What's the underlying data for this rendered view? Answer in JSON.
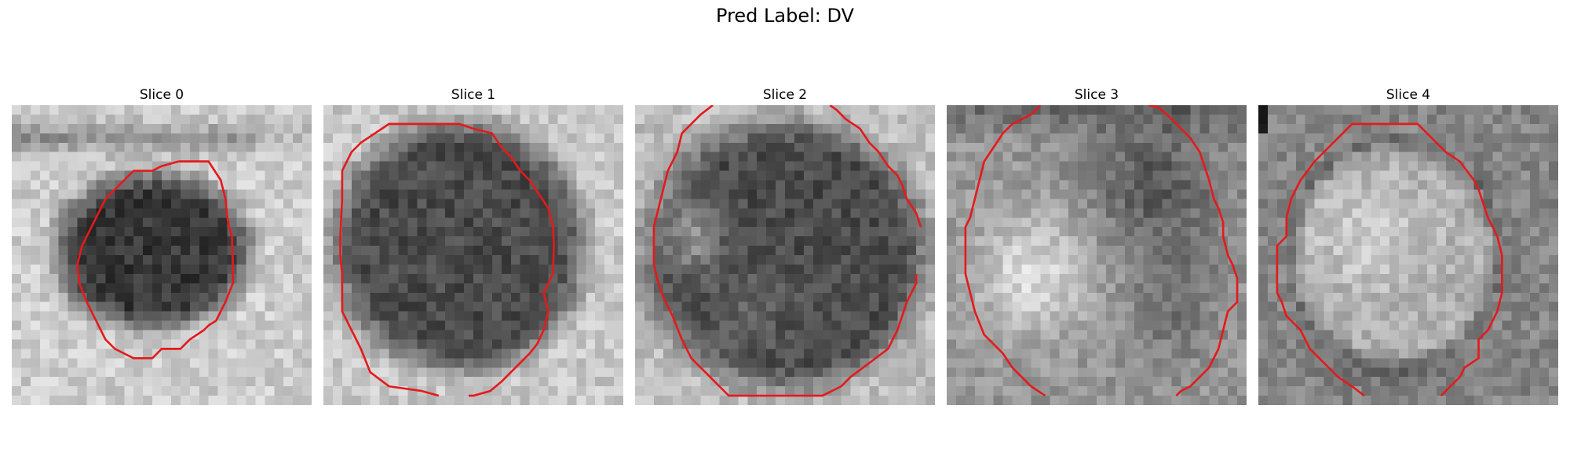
{
  "figure": {
    "title": "Pred Label: DV"
  },
  "panels": [
    {
      "title": "Slice 0"
    },
    {
      "title": "Slice 1"
    },
    {
      "title": "Slice 2"
    },
    {
      "title": "Slice 3"
    },
    {
      "title": "Slice 4"
    }
  ],
  "colors": {
    "contour": "#e41a1c"
  }
}
